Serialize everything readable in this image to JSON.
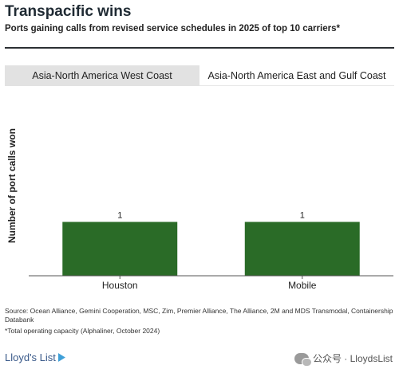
{
  "header": {
    "title": "Transpacific wins",
    "subtitle": "Ports gaining calls from revised service schedules in 2025 of top 10 carriers*"
  },
  "tabs": [
    {
      "label": "Asia-North America West Coast",
      "active": false
    },
    {
      "label": "Asia-North America East and Gulf Coast",
      "active": true
    }
  ],
  "colors": {
    "bar": "#2a6b27",
    "tab_inactive": "#e2e2e2"
  },
  "chart_data": {
    "type": "bar",
    "categories": [
      "Houston",
      "Mobile"
    ],
    "values": [
      1,
      1
    ],
    "data_labels": [
      "1",
      "1"
    ],
    "xlabel": "",
    "ylabel": "Number of port calls won",
    "ylim": [
      0,
      2.9
    ],
    "grid": false,
    "legend": "none"
  },
  "footer": {
    "source": "Source: Ocean Alliance, Gemini Cooperation, MSC, Zim, Premier Alliance, The Alliance, 2M and MDS Transmodal, Containership Databank",
    "footnote": "*Total operating capacity (Alphaliner, October 2024)",
    "logo": "Lloyd's List",
    "watermark": "公众号 · LloydsList"
  }
}
